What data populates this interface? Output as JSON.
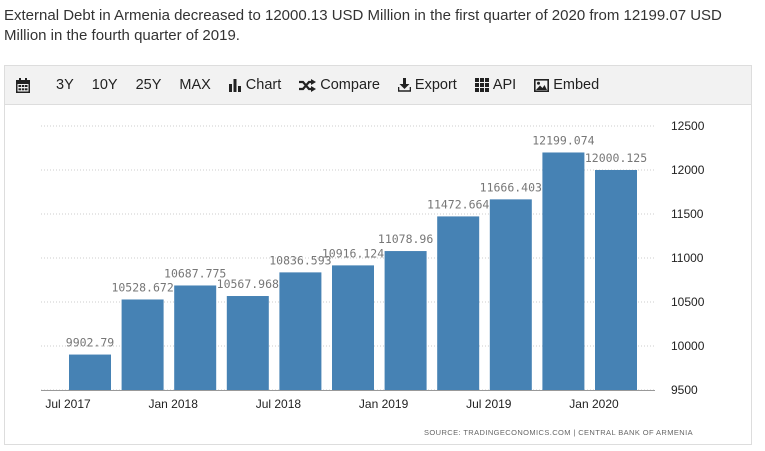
{
  "summary": {
    "text": "External Debt in Armenia decreased to 12000.13 USD Million in the first quarter of 2020 from 12199.07 USD Million in the fourth quarter of 2019."
  },
  "toolbar": {
    "calendar_icon": "calendar-icon",
    "ranges": [
      "3Y",
      "10Y",
      "25Y",
      "MAX"
    ],
    "chart_label": "Chart",
    "compare_label": "Compare",
    "export_label": "Export",
    "api_label": "API",
    "embed_label": "Embed"
  },
  "colors": {
    "bar": "#4682b4",
    "grid": "#cccccc",
    "label": "#777777",
    "axis_text": "#222222"
  },
  "chart_data": {
    "type": "bar",
    "categories": [
      "2017 Q3",
      "2017 Q4",
      "2018 Q1",
      "2018 Q2",
      "2018 Q3",
      "2018 Q4",
      "2019 Q1",
      "2019 Q2",
      "2019 Q3",
      "2019 Q4",
      "2020 Q1"
    ],
    "values": [
      9902.79,
      10528.672,
      10687.775,
      10567.968,
      10836.593,
      10916.124,
      11078.96,
      11472.664,
      11666.403,
      12199.074,
      12000.125
    ],
    "value_labels": [
      "9902.79",
      "10528.672",
      "10687.775",
      "10567.968",
      "10836.593",
      "10916.124",
      "11078.96",
      "11472.664",
      "11666.403",
      "12199.074",
      "12000.125"
    ],
    "x_tick_labels": [
      "Jul 2017",
      "Jan 2018",
      "Jul 2018",
      "Jan 2019",
      "Jul 2019",
      "Jan 2020"
    ],
    "y_ticks": [
      9500,
      10000,
      10500,
      11000,
      11500,
      12000,
      12500
    ],
    "ylim": [
      9500,
      12500
    ],
    "y_axis_side": "right",
    "grid": true,
    "source": "SOURCE: TRADINGECONOMICS.COM | CENTRAL BANK OF ARMENIA"
  }
}
